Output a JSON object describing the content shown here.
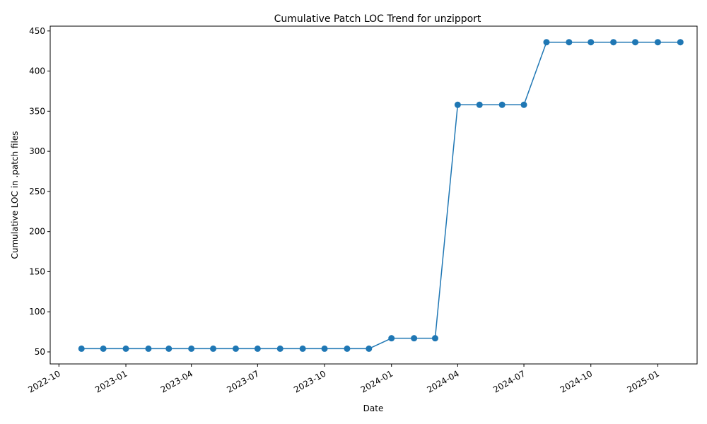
{
  "chart_data": {
    "type": "line",
    "title": "Cumulative Patch LOC Trend for unzipport",
    "xlabel": "Date",
    "ylabel": "Cumulative LOC in .patch files",
    "xlim": [
      "2022-09-19",
      "2025-02-24"
    ],
    "ylim": [
      35,
      456
    ],
    "x_ticks": [
      "2022-10",
      "2023-01",
      "2023-04",
      "2023-07",
      "2023-10",
      "2024-01",
      "2024-04",
      "2024-07",
      "2024-10",
      "2025-01"
    ],
    "y_ticks": [
      50,
      100,
      150,
      200,
      250,
      300,
      350,
      400,
      450
    ],
    "grid": false,
    "color": "#1f77b4",
    "series": [
      {
        "x": [
          "2022-11-01",
          "2022-12-01",
          "2023-01-01",
          "2023-02-01",
          "2023-03-01",
          "2023-04-01",
          "2023-05-01",
          "2023-06-01",
          "2023-07-01",
          "2023-08-01",
          "2023-09-01",
          "2023-10-01",
          "2023-11-01",
          "2023-12-01",
          "2024-01-01",
          "2024-02-01",
          "2024-03-01",
          "2024-04-01",
          "2024-05-01",
          "2024-06-01",
          "2024-07-01",
          "2024-08-01",
          "2024-09-01",
          "2024-10-01",
          "2024-11-01",
          "2024-12-01",
          "2025-01-01",
          "2025-02-01"
        ],
        "values": [
          54,
          54,
          54,
          54,
          54,
          54,
          54,
          54,
          54,
          54,
          54,
          54,
          54,
          54,
          67,
          67,
          67,
          358,
          358,
          358,
          358,
          436,
          436,
          436,
          436,
          436,
          436,
          436
        ]
      }
    ]
  }
}
